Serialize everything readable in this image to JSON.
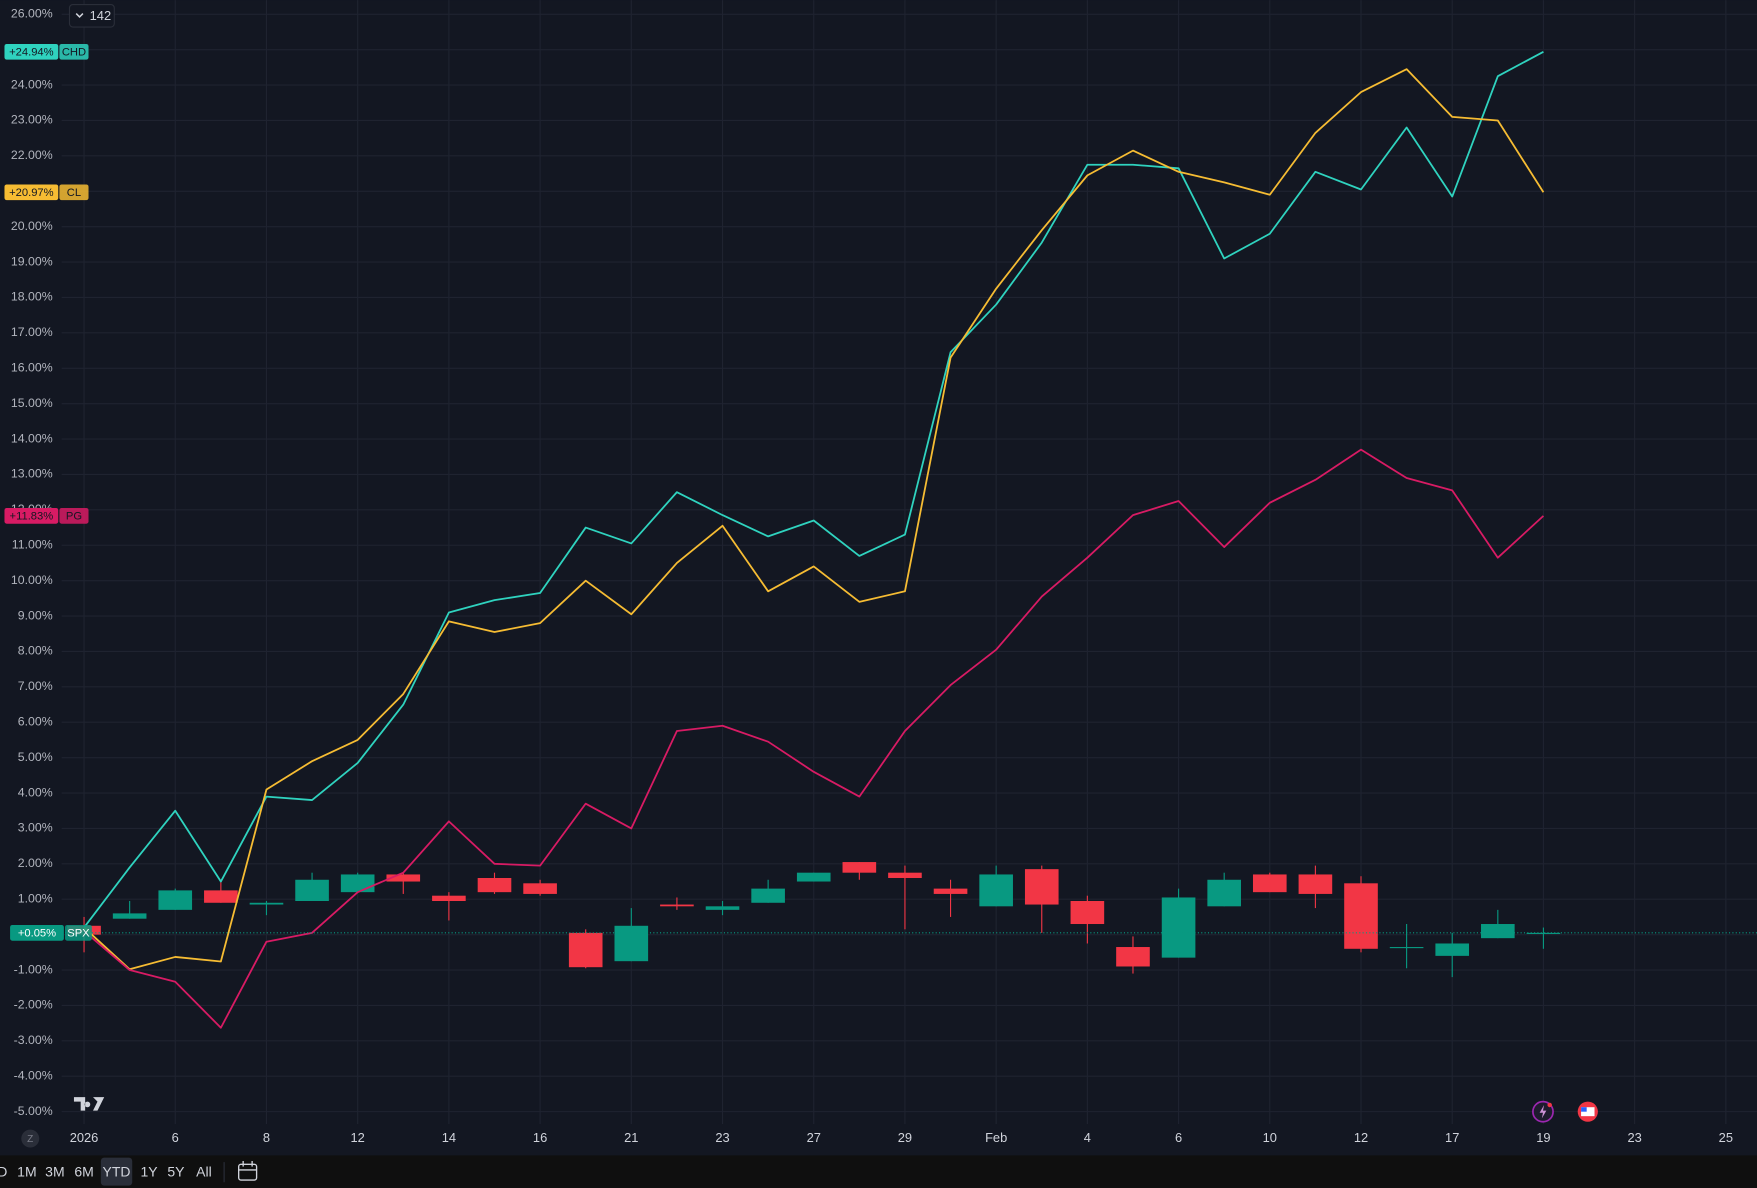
{
  "chart_data": {
    "type": "line",
    "toolbar_counter": "142",
    "timezone_badge": "Z",
    "range_buttons": [
      "D",
      "1M",
      "3M",
      "6M",
      "YTD",
      "1Y",
      "5Y",
      "All"
    ],
    "active_range": 4,
    "categories": [
      "2026",
      null,
      "6",
      null,
      "8",
      null,
      "12",
      null,
      "14",
      null,
      "16",
      null,
      "21",
      null,
      "23",
      null,
      "27",
      null,
      "29",
      null,
      "Feb",
      null,
      "4",
      null,
      "6",
      null,
      "10",
      null,
      "12",
      null,
      "17",
      null,
      "19",
      null,
      "23",
      null,
      "25"
    ],
    "ylim": [
      -5.35,
      26.4
    ],
    "yticks": [
      {
        "value": -5,
        "label": "-5.00%"
      },
      {
        "value": -4,
        "label": "-4.00%"
      },
      {
        "value": -3,
        "label": "-3.00%"
      },
      {
        "value": -2,
        "label": "-2.00%"
      },
      {
        "value": -1,
        "label": "-1.00%"
      },
      {
        "value": 0,
        "label": "0.00%"
      },
      {
        "value": 1,
        "label": "1.00%"
      },
      {
        "value": 2,
        "label": "2.00%"
      },
      {
        "value": 3,
        "label": "3.00%"
      },
      {
        "value": 4,
        "label": "4.00%"
      },
      {
        "value": 5,
        "label": "5.00%"
      },
      {
        "value": 6,
        "label": "6.00%"
      },
      {
        "value": 7,
        "label": "7.00%"
      },
      {
        "value": 8,
        "label": "8.00%"
      },
      {
        "value": 9,
        "label": "9.00%"
      },
      {
        "value": 10,
        "label": "10.00%"
      },
      {
        "value": 11,
        "label": "11.00%"
      },
      {
        "value": 12,
        "label": "12.00%"
      },
      {
        "value": 13,
        "label": "13.00%"
      },
      {
        "value": 14,
        "label": "14.00%"
      },
      {
        "value": 15,
        "label": "15.00%"
      },
      {
        "value": 16,
        "label": "16.00%"
      },
      {
        "value": 17,
        "label": "17.00%"
      },
      {
        "value": 18,
        "label": "18.00%"
      },
      {
        "value": 19,
        "label": "19.00%"
      },
      {
        "value": 20,
        "label": "20.00%"
      },
      {
        "value": 21,
        "label": "21.00%"
      },
      {
        "value": 22,
        "label": "22.00%"
      },
      {
        "value": 23,
        "label": "23.00%"
      },
      {
        "value": 24,
        "label": "24.00%"
      },
      {
        "value": 25,
        "label": "25.00%"
      },
      {
        "value": 26,
        "label": "26.00%"
      }
    ],
    "grid": true,
    "series": [
      {
        "name": "CHD",
        "color": "#2fd3bf",
        "last_value_label": "+24.94%",
        "values": [
          0.2,
          1.9,
          3.5,
          1.5,
          3.9,
          3.8,
          4.85,
          6.5,
          9.1,
          9.45,
          9.65,
          11.5,
          11.05,
          12.5,
          11.85,
          11.25,
          11.7,
          10.7,
          11.3,
          16.45,
          17.8,
          19.55,
          21.75,
          21.75,
          21.65,
          19.1,
          19.8,
          21.55,
          21.05,
          22.8,
          20.85,
          24.25,
          24.94,
          null,
          null,
          null,
          null
        ]
      },
      {
        "name": "CL",
        "color": "#f6bc33",
        "last_value_label": "+20.97%",
        "values": [
          0.2,
          -0.98,
          -0.63,
          -0.76,
          4.1,
          4.9,
          5.5,
          6.8,
          8.85,
          8.55,
          8.8,
          10.0,
          9.05,
          10.5,
          11.55,
          9.7,
          10.4,
          9.4,
          9.7,
          16.3,
          18.25,
          19.9,
          21.45,
          22.15,
          21.55,
          21.25,
          20.9,
          22.65,
          23.8,
          24.45,
          23.1,
          23.0,
          20.97,
          null,
          null,
          null,
          null
        ]
      },
      {
        "name": "PG",
        "color": "#d81b64",
        "last_value_label": "+11.83%",
        "values": [
          0.1,
          -1.0,
          -1.33,
          -2.63,
          -0.2,
          0.05,
          1.2,
          1.75,
          3.2,
          2.0,
          1.95,
          3.7,
          3.0,
          5.75,
          5.9,
          5.45,
          4.6,
          3.9,
          5.75,
          7.05,
          8.05,
          9.55,
          10.65,
          11.85,
          12.25,
          10.95,
          12.2,
          12.85,
          13.7,
          12.9,
          12.55,
          10.65,
          11.83,
          null,
          null,
          null,
          null
        ]
      },
      {
        "name": "SPX",
        "type": "candlestick",
        "color": "#089981",
        "down_color": "#f23645",
        "last_value_label": "+0.05%",
        "open": [
          0.25,
          0.45,
          0.7,
          1.25,
          0.85,
          0.95,
          1.2,
          1.7,
          1.1,
          1.6,
          1.45,
          0.05,
          -0.75,
          0.85,
          0.7,
          0.9,
          1.5,
          2.05,
          1.75,
          1.3,
          0.8,
          1.85,
          0.95,
          -0.35,
          -0.65,
          0.8,
          1.7,
          1.7,
          1.45,
          -0.35,
          -0.6,
          -0.1,
          0.05,
          null,
          null,
          null,
          null
        ],
        "high": [
          0.5,
          0.95,
          1.3,
          1.5,
          0.95,
          1.75,
          1.75,
          1.75,
          1.2,
          1.75,
          1.55,
          0.15,
          0.75,
          1.05,
          0.95,
          1.55,
          1.75,
          2.05,
          1.95,
          1.55,
          1.95,
          1.95,
          1.1,
          -0.05,
          1.3,
          1.75,
          1.75,
          1.95,
          1.65,
          0.3,
          0.05,
          0.7,
          0.2,
          null,
          null,
          null,
          null
        ],
        "low": [
          -0.5,
          0.45,
          0.7,
          0.9,
          0.55,
          0.95,
          1.2,
          1.15,
          0.4,
          1.15,
          1.1,
          -0.95,
          -0.75,
          0.7,
          0.55,
          0.9,
          1.5,
          1.55,
          0.15,
          0.5,
          0.8,
          0.05,
          -0.25,
          -1.1,
          -0.65,
          0.8,
          1.2,
          0.75,
          -0.5,
          -0.95,
          -1.2,
          -0.1,
          -0.4,
          null,
          null,
          null,
          null
        ],
        "close": [
          0,
          0.6,
          1.25,
          0.9,
          0.9,
          1.55,
          1.7,
          1.5,
          0.95,
          1.2,
          1.15,
          -0.92,
          0.25,
          0.8,
          0.8,
          1.3,
          1.75,
          1.75,
          1.6,
          1.15,
          1.7,
          0.85,
          0.3,
          -0.9,
          1.05,
          1.55,
          1.2,
          1.15,
          -0.4,
          -0.35,
          -0.25,
          0.3,
          0.05,
          null,
          null,
          null,
          null
        ]
      }
    ]
  }
}
